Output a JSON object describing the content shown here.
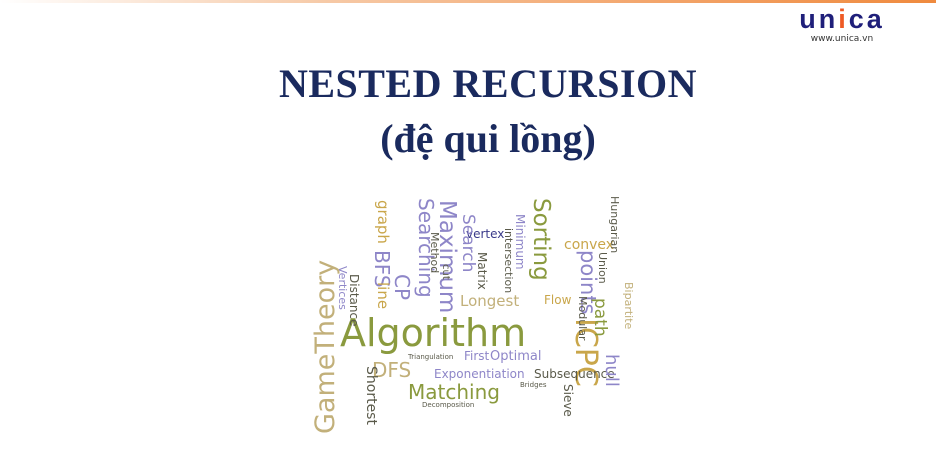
{
  "brand": {
    "logo_a": "un",
    "logo_b": "i",
    "logo_c": "ca",
    "url": "www.unica.vn"
  },
  "slide": {
    "title": "NESTED RECURSION",
    "subtitle": "(đệ qui lồng)"
  },
  "word_cloud": {
    "words": [
      "Algorithm",
      "GameTheory",
      "Searching",
      "Maximum",
      "Sorting",
      "points",
      "ICPC",
      "Matching",
      "DFS",
      "BFS",
      "CP",
      "Shortest",
      "Exponentiation",
      "Subsequence",
      "Longest",
      "Optimal",
      "First",
      "convex",
      "hull",
      "path",
      "Hungarian",
      "vertex",
      "Matrix",
      "intersection",
      "Minimum",
      "Search",
      "graph",
      "line",
      "Distance",
      "Vertices",
      "Flow",
      "Bipartite",
      "Modular",
      "Union",
      "Sieve",
      "Method",
      "cut",
      "Bridges",
      "Decomposition",
      "Triangulation"
    ],
    "colors": {
      "olive": "#8a9a3e",
      "lavender": "#8e86c8",
      "gold": "#c9a64a",
      "khaki": "#c2b07a",
      "gray": "#8a8a7a",
      "blue": "#3a3a8a"
    }
  }
}
